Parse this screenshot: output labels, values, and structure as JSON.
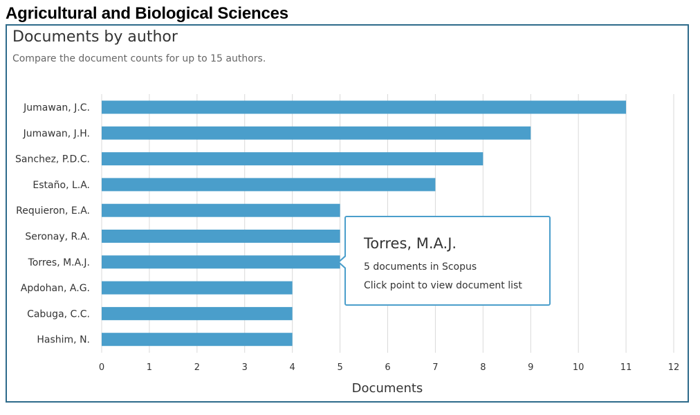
{
  "page": {
    "heading": "Agricultural and Biological Sciences"
  },
  "panel": {
    "title": "Documents by author",
    "subtitle": "Compare the document counts for up to 15 authors."
  },
  "tooltip": {
    "author": "Torres, M.A.J.",
    "count_text": "5 documents in Scopus",
    "action_text": "Click point to view document list"
  },
  "colors": {
    "bar": "#4a9ecb",
    "grid": "#d9d9d9",
    "panel_border": "#2d6a8a",
    "tooltip_border": "#4a9ecb"
  },
  "chart_data": {
    "type": "bar",
    "orientation": "horizontal",
    "title": "Documents by author",
    "subtitle": "Compare the document counts for up to 15 authors.",
    "xlabel": "Documents",
    "ylabel": "",
    "categories": [
      "Jumawan, J.C.",
      "Jumawan, J.H.",
      "Sanchez, P.D.C.",
      "Estaño, L.A.",
      "Requieron, E.A.",
      "Seronay, R.A.",
      "Torres, M.A.J.",
      "Apdohan, A.G.",
      "Cabuga, C.C.",
      "Hashim, N."
    ],
    "values": [
      11,
      9,
      8,
      7,
      5,
      5,
      5,
      4,
      4,
      4
    ],
    "xlim": [
      0,
      12
    ],
    "xticks": [
      "0",
      "1",
      "2",
      "3",
      "4",
      "5",
      "6",
      "7",
      "8",
      "9",
      "10",
      "11",
      "12"
    ],
    "grid": "vertical",
    "legend": "none"
  }
}
